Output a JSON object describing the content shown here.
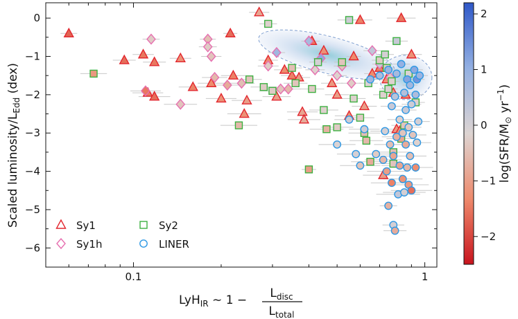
{
  "chart_data": {
    "type": "scatter",
    "title": "",
    "xlabel": {
      "prefix": "LyH",
      "prefix_sub": "IR",
      "middle": " ∼ 1 − ",
      "frac_num": "L",
      "frac_num_sub": "disc",
      "frac_den": "L",
      "frac_den_sub": "total"
    },
    "ylabel": "Scaled luminosity/L",
    "ylabel_sub": "Edd",
    "ylabel_suffix": " (dex)",
    "xscale": "log",
    "xlim": [
      0.05,
      1.1
    ],
    "ylim": [
      -6.5,
      0.4
    ],
    "x_ticks": [
      {
        "value": 0.1,
        "label": "0.1"
      },
      {
        "value": 1,
        "label": "1"
      }
    ],
    "y_ticks": [
      0,
      -1,
      -2,
      -3,
      -4,
      -5,
      -6
    ],
    "y_tick_labels": [
      "0",
      "−1",
      "−2",
      "−3",
      "−4",
      "−5",
      "−6"
    ],
    "colorbar": {
      "label": "log(SFR/M",
      "label_symbol": "⊙",
      "label_unit": " yr",
      "label_sup": "−1",
      "label_close": ")",
      "range": [
        -2.5,
        2.2
      ],
      "ticks": [
        2,
        1,
        0,
        -1,
        -2
      ],
      "tick_labels": [
        "2",
        "1",
        "0",
        "−1",
        "−2"
      ],
      "colors": [
        "#c8141e",
        "#ee8a6c",
        "#ddd4d2",
        "#93b0e2",
        "#2f58c8"
      ]
    },
    "legend": {
      "placement": "bottom-left",
      "entries": [
        {
          "label": "Sy1",
          "marker": "triangle",
          "edge": "#e2262e"
        },
        {
          "label": "Sy1h",
          "marker": "diamond",
          "edge": "#e76fb0"
        },
        {
          "label": "Sy2",
          "marker": "square",
          "edge": "#3db041"
        },
        {
          "label": "LINER",
          "marker": "circle",
          "edge": "#2e98e4"
        }
      ]
    },
    "density_contours": [
      {
        "cx": 0.46,
        "cy": -0.95,
        "rx_log": 0.24,
        "ry": 0.48,
        "rot": 14
      },
      {
        "cx": 0.86,
        "cy": -1.55,
        "rx_log": 0.09,
        "ry": 0.58,
        "rot": 0
      }
    ],
    "series": [
      {
        "name": "Sy1",
        "marker": "triangle",
        "points": [
          {
            "x": 0.06,
            "y": -0.4,
            "c": -1.7
          },
          {
            "x": 0.093,
            "y": -1.1,
            "c": -1.6
          },
          {
            "x": 0.108,
            "y": -0.95,
            "c": -1.5
          },
          {
            "x": 0.118,
            "y": -1.15,
            "c": -1.5
          },
          {
            "x": 0.145,
            "y": -1.05,
            "c": -1.2
          },
          {
            "x": 0.112,
            "y": -1.95,
            "c": -1.5
          },
          {
            "x": 0.118,
            "y": -2.05,
            "c": -1.6
          },
          {
            "x": 0.16,
            "y": -1.8,
            "c": -1.4
          },
          {
            "x": 0.185,
            "y": -1.7,
            "c": -1.3
          },
          {
            "x": 0.2,
            "y": -2.1,
            "c": -1.2
          },
          {
            "x": 0.215,
            "y": -0.4,
            "c": -1.6
          },
          {
            "x": 0.22,
            "y": -1.5,
            "c": -1.4
          },
          {
            "x": 0.24,
            "y": -2.5,
            "c": -1.2
          },
          {
            "x": 0.245,
            "y": -2.15,
            "c": -1.0
          },
          {
            "x": 0.27,
            "y": 0.15,
            "c": -0.9
          },
          {
            "x": 0.29,
            "y": -1.1,
            "c": -1.3
          },
          {
            "x": 0.31,
            "y": -2.05,
            "c": -1.0
          },
          {
            "x": 0.33,
            "y": -1.35,
            "c": -1.3
          },
          {
            "x": 0.35,
            "y": -1.5,
            "c": -1.4
          },
          {
            "x": 0.37,
            "y": -1.55,
            "c": -1.1
          },
          {
            "x": 0.38,
            "y": -2.45,
            "c": -0.9
          },
          {
            "x": 0.385,
            "y": -2.65,
            "c": -0.8
          },
          {
            "x": 0.41,
            "y": -0.6,
            "c": -1.5
          },
          {
            "x": 0.45,
            "y": -0.85,
            "c": -1.2
          },
          {
            "x": 0.48,
            "y": -1.7,
            "c": -1.1
          },
          {
            "x": 0.5,
            "y": -2.0,
            "c": -1.0
          },
          {
            "x": 0.55,
            "y": -2.55,
            "c": -1.2
          },
          {
            "x": 0.57,
            "y": -1.0,
            "c": -1.3
          },
          {
            "x": 0.6,
            "y": -0.05,
            "c": -1.4
          },
          {
            "x": 0.62,
            "y": -2.3,
            "c": -1.0
          },
          {
            "x": 0.66,
            "y": -1.45,
            "c": -1.3
          },
          {
            "x": 0.7,
            "y": -1.3,
            "c": -1.4
          },
          {
            "x": 0.74,
            "y": -1.6,
            "c": -1.2
          },
          {
            "x": 0.78,
            "y": -1.95,
            "c": -1.0
          },
          {
            "x": 0.8,
            "y": -2.9,
            "c": -1.1
          },
          {
            "x": 0.82,
            "y": -2.95,
            "c": -1.2
          },
          {
            "x": 0.86,
            "y": -2.0,
            "c": -1.3
          },
          {
            "x": 0.83,
            "y": 0.0,
            "c": -1.5
          },
          {
            "x": 0.9,
            "y": -0.95,
            "c": -1.2
          },
          {
            "x": 0.72,
            "y": -4.1,
            "c": -1.0
          }
        ]
      },
      {
        "name": "Sy1h",
        "marker": "diamond",
        "points": [
          {
            "x": 0.115,
            "y": -0.55,
            "c": -0.3
          },
          {
            "x": 0.11,
            "y": -1.9,
            "c": -1.5
          },
          {
            "x": 0.145,
            "y": -2.25,
            "c": -0.4
          },
          {
            "x": 0.18,
            "y": -0.55,
            "c": -0.5
          },
          {
            "x": 0.18,
            "y": -0.75,
            "c": -0.3
          },
          {
            "x": 0.185,
            "y": -1.0,
            "c": -0.4
          },
          {
            "x": 0.19,
            "y": -1.55,
            "c": -0.6
          },
          {
            "x": 0.21,
            "y": -1.75,
            "c": -0.8
          },
          {
            "x": 0.235,
            "y": -1.7,
            "c": -0.5
          },
          {
            "x": 0.29,
            "y": -1.25,
            "c": -0.3
          },
          {
            "x": 0.31,
            "y": -0.9,
            "c": 0.8
          },
          {
            "x": 0.32,
            "y": -1.85,
            "c": -0.4
          },
          {
            "x": 0.34,
            "y": -1.85,
            "c": -0.6
          },
          {
            "x": 0.4,
            "y": -0.6,
            "c": 0.7
          },
          {
            "x": 0.42,
            "y": -1.35,
            "c": -0.2
          },
          {
            "x": 0.44,
            "y": -1.05,
            "c": 1.1
          },
          {
            "x": 0.5,
            "y": -1.5,
            "c": -0.2
          },
          {
            "x": 0.52,
            "y": -1.25,
            "c": -0.4
          },
          {
            "x": 0.56,
            "y": -1.7,
            "c": -0.3
          },
          {
            "x": 0.66,
            "y": -0.85,
            "c": 0.3
          },
          {
            "x": 0.7,
            "y": -1.2,
            "c": 0.2
          },
          {
            "x": 0.76,
            "y": -1.55,
            "c": -0.3
          }
        ]
      },
      {
        "name": "Sy2",
        "marker": "square",
        "points": [
          {
            "x": 0.073,
            "y": -1.45,
            "c": -1.1
          },
          {
            "x": 0.23,
            "y": -2.8,
            "c": -0.6
          },
          {
            "x": 0.25,
            "y": -1.6,
            "c": -0.4
          },
          {
            "x": 0.28,
            "y": -1.8,
            "c": -0.3
          },
          {
            "x": 0.29,
            "y": -0.15,
            "c": -0.2
          },
          {
            "x": 0.3,
            "y": -1.9,
            "c": -0.3
          },
          {
            "x": 0.35,
            "y": -1.3,
            "c": -0.5
          },
          {
            "x": 0.36,
            "y": -1.7,
            "c": -0.4
          },
          {
            "x": 0.4,
            "y": -3.95,
            "c": -1.0
          },
          {
            "x": 0.41,
            "y": -1.85,
            "c": -0.3
          },
          {
            "x": 0.43,
            "y": -1.15,
            "c": 0.0
          },
          {
            "x": 0.45,
            "y": -2.4,
            "c": -0.2
          },
          {
            "x": 0.46,
            "y": -2.9,
            "c": -0.7
          },
          {
            "x": 0.5,
            "y": -2.85,
            "c": -0.3
          },
          {
            "x": 0.52,
            "y": -1.15,
            "c": -0.4
          },
          {
            "x": 0.55,
            "y": -0.05,
            "c": 0.1
          },
          {
            "x": 0.57,
            "y": -2.1,
            "c": -0.2
          },
          {
            "x": 0.6,
            "y": -2.6,
            "c": -0.3
          },
          {
            "x": 0.62,
            "y": -3.0,
            "c": -0.5
          },
          {
            "x": 0.63,
            "y": -3.2,
            "c": -0.6
          },
          {
            "x": 0.64,
            "y": -1.7,
            "c": -0.1
          },
          {
            "x": 0.65,
            "y": -3.75,
            "c": -0.8
          },
          {
            "x": 0.7,
            "y": -1.1,
            "c": -0.3
          },
          {
            "x": 0.72,
            "y": -2.0,
            "c": -0.2
          },
          {
            "x": 0.73,
            "y": -0.95,
            "c": 0.0
          },
          {
            "x": 0.74,
            "y": -1.3,
            "c": -0.3
          },
          {
            "x": 0.75,
            "y": -1.85,
            "c": -0.1
          },
          {
            "x": 0.77,
            "y": -1.65,
            "c": -0.2
          },
          {
            "x": 0.78,
            "y": -3.5,
            "c": -0.5
          },
          {
            "x": 0.8,
            "y": -0.6,
            "c": 0.2
          },
          {
            "x": 0.83,
            "y": -3.15,
            "c": -0.9
          },
          {
            "x": 0.85,
            "y": -2.8,
            "c": -0.4
          },
          {
            "x": 0.88,
            "y": -1.45,
            "c": -0.1
          },
          {
            "x": 0.93,
            "y": -2.2,
            "c": -0.2
          },
          {
            "x": 0.78,
            "y": -3.8,
            "c": -0.4
          }
        ]
      },
      {
        "name": "LINER",
        "marker": "circle",
        "points": [
          {
            "x": 0.5,
            "y": -3.3,
            "c": -0.1
          },
          {
            "x": 0.55,
            "y": -2.65,
            "c": 0.1
          },
          {
            "x": 0.58,
            "y": -3.55,
            "c": 0.0
          },
          {
            "x": 0.6,
            "y": -3.85,
            "c": -0.4
          },
          {
            "x": 0.62,
            "y": -2.9,
            "c": 0.1
          },
          {
            "x": 0.65,
            "y": -1.6,
            "c": 0.8
          },
          {
            "x": 0.68,
            "y": -3.55,
            "c": -0.3
          },
          {
            "x": 0.7,
            "y": -1.5,
            "c": 0.6
          },
          {
            "x": 0.72,
            "y": -3.7,
            "c": -0.6
          },
          {
            "x": 0.73,
            "y": -2.95,
            "c": 0.0
          },
          {
            "x": 0.74,
            "y": -4.0,
            "c": -1.0
          },
          {
            "x": 0.75,
            "y": -1.35,
            "c": 0.9
          },
          {
            "x": 0.75,
            "y": -4.9,
            "c": -0.7
          },
          {
            "x": 0.76,
            "y": -3.3,
            "c": -0.5
          },
          {
            "x": 0.77,
            "y": -2.3,
            "c": 0.2
          },
          {
            "x": 0.78,
            "y": -3.6,
            "c": -0.9
          },
          {
            "x": 0.78,
            "y": -5.4,
            "c": 0.0
          },
          {
            "x": 0.79,
            "y": -5.55,
            "c": -0.8
          },
          {
            "x": 0.8,
            "y": -1.45,
            "c": 0.7
          },
          {
            "x": 0.8,
            "y": -3.1,
            "c": -0.7
          },
          {
            "x": 0.81,
            "y": -4.6,
            "c": 0.3
          },
          {
            "x": 0.82,
            "y": -3.85,
            "c": -0.9
          },
          {
            "x": 0.82,
            "y": -2.65,
            "c": -0.2
          },
          {
            "x": 0.83,
            "y": -1.2,
            "c": 1.0
          },
          {
            "x": 0.84,
            "y": -4.2,
            "c": -1.2
          },
          {
            "x": 0.84,
            "y": -3.0,
            "c": -0.4
          },
          {
            "x": 0.85,
            "y": -1.95,
            "c": 0.5
          },
          {
            "x": 0.85,
            "y": -4.55,
            "c": 0.0
          },
          {
            "x": 0.86,
            "y": -3.3,
            "c": -0.8
          },
          {
            "x": 0.86,
            "y": -2.4,
            "c": 0.2
          },
          {
            "x": 0.87,
            "y": -3.9,
            "c": -0.6
          },
          {
            "x": 0.87,
            "y": -1.6,
            "c": 1.2
          },
          {
            "x": 0.88,
            "y": -4.35,
            "c": -1.1
          },
          {
            "x": 0.88,
            "y": -2.85,
            "c": -0.3
          },
          {
            "x": 0.89,
            "y": -3.6,
            "c": -0.5
          },
          {
            "x": 0.89,
            "y": -1.75,
            "c": 0.8
          },
          {
            "x": 0.9,
            "y": -4.5,
            "c": -1.6
          },
          {
            "x": 0.9,
            "y": -2.25,
            "c": 0.1
          },
          {
            "x": 0.91,
            "y": -3.05,
            "c": -0.4
          },
          {
            "x": 0.92,
            "y": -1.35,
            "c": 1.1
          },
          {
            "x": 0.93,
            "y": -3.9,
            "c": -1.3
          },
          {
            "x": 0.93,
            "y": -2.0,
            "c": 0.6
          },
          {
            "x": 0.94,
            "y": -3.25,
            "c": -0.2
          },
          {
            "x": 0.94,
            "y": -1.6,
            "c": 1.4
          },
          {
            "x": 0.95,
            "y": -2.7,
            "c": 0.0
          },
          {
            "x": 0.96,
            "y": -1.5,
            "c": 0.9
          },
          {
            "x": 0.79,
            "y": -2.05,
            "c": 0.4
          },
          {
            "x": 0.77,
            "y": -4.3,
            "c": -1.4
          }
        ]
      }
    ]
  }
}
